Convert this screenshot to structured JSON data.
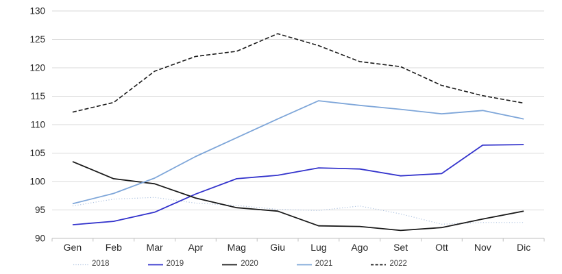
{
  "chart_data": {
    "type": "line",
    "title": "",
    "xlabel": "",
    "ylabel": "",
    "categories": [
      "Gen",
      "Feb",
      "Mar",
      "Apr",
      "Mag",
      "Giu",
      "Lug",
      "Ago",
      "Set",
      "Ott",
      "Nov",
      "Dic"
    ],
    "series": [
      {
        "name": "2018",
        "color": "#AEC3E0",
        "style": "dotted",
        "values": [
          95.7,
          96.9,
          97.2,
          96.2,
          95.8,
          95.1,
          94.9,
          95.7,
          94.3,
          92.5,
          92.8,
          92.8
        ]
      },
      {
        "name": "2019",
        "color": "#3333CC",
        "style": "solid",
        "values": [
          92.4,
          93.0,
          94.6,
          97.8,
          100.5,
          101.1,
          102.4,
          102.2,
          101.0,
          101.4,
          106.4,
          106.5
        ]
      },
      {
        "name": "2020",
        "color": "#1A1A1A",
        "style": "solid",
        "values": [
          103.5,
          100.5,
          99.6,
          97.1,
          95.4,
          94.8,
          92.2,
          92.1,
          91.4,
          91.9,
          93.4,
          94.8
        ]
      },
      {
        "name": "2021",
        "color": "#7EA6D9",
        "style": "solid",
        "values": [
          96.1,
          97.9,
          100.6,
          104.4,
          107.7,
          111.0,
          114.2,
          113.4,
          112.7,
          111.9,
          112.5,
          111.0
        ]
      },
      {
        "name": "2022",
        "color": "#1A1A1A",
        "style": "dashed",
        "values": [
          112.2,
          113.9,
          119.4,
          122.0,
          122.9,
          126.0,
          123.9,
          121.1,
          120.2,
          116.9,
          115.1,
          113.8
        ]
      }
    ],
    "ylim": [
      90,
      130
    ],
    "yticks": [
      90,
      95,
      100,
      105,
      110,
      115,
      120,
      125,
      130
    ],
    "grid": true,
    "legend_position": "bottom"
  },
  "colors": {
    "background": "#FFFFFF",
    "grid": "#D9D9D9",
    "axis": "#BFBFBF",
    "tick_label": "#262626",
    "legend_text": "#404040"
  }
}
